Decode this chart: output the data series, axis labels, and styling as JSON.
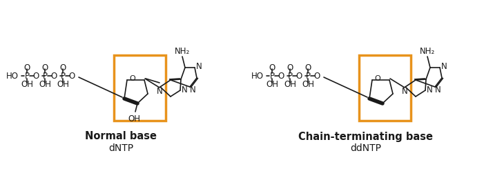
{
  "bg_color": "#ffffff",
  "line_color": "#1a1a1a",
  "orange_color": "#e8931c",
  "label1_bold": "Normal base",
  "label1_normal": "dNTP",
  "label2_bold": "Chain-terminating base",
  "label2_normal": "ddNTP",
  "oh_label": "OH",
  "nh2_label": "NH₂",
  "o_label": "O",
  "n_label": "N",
  "ho_label": "HO",
  "p_label": "P",
  "font_size_label": 10,
  "font_size_text": 9,
  "font_size_atom": 8.5
}
